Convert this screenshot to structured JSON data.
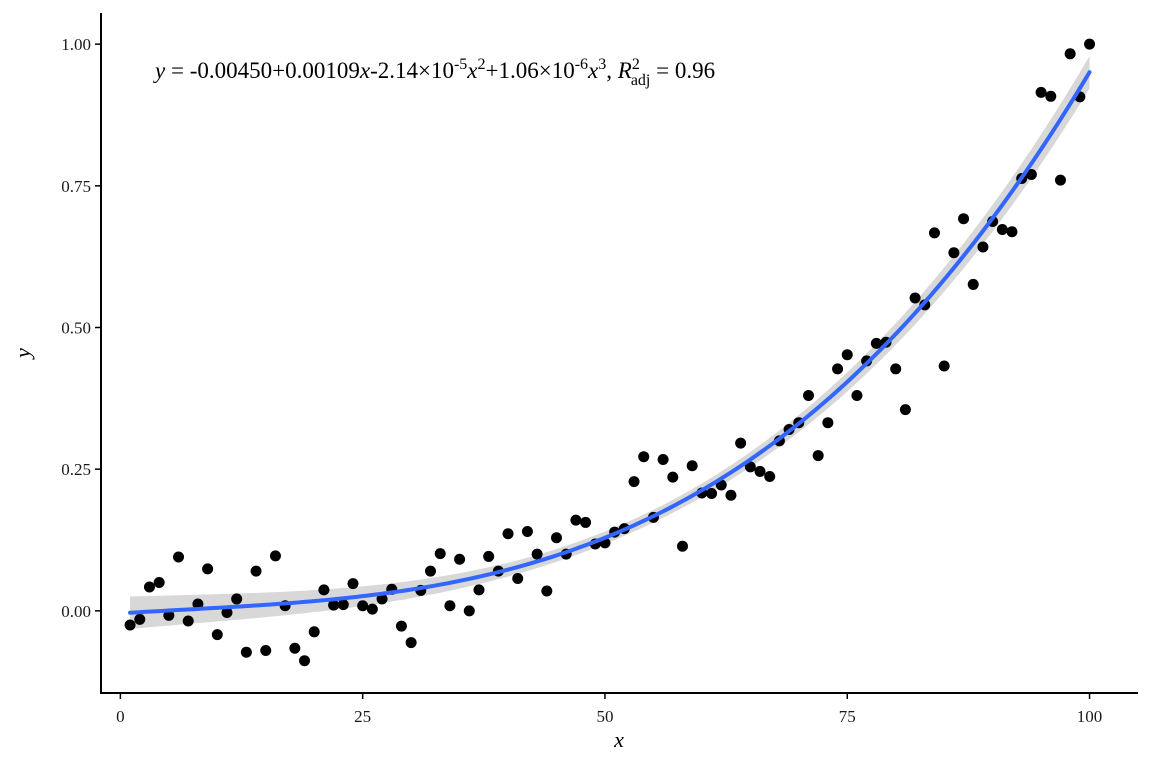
{
  "chart_data": {
    "type": "scatter",
    "xlabel": "x",
    "ylabel": "y",
    "xlim": [
      -2,
      105
    ],
    "ylim": [
      -0.145,
      1.055
    ],
    "x_ticks": [
      0,
      25,
      50,
      75,
      100
    ],
    "x_tick_labels": [
      "0",
      "25",
      "50",
      "75",
      "100"
    ],
    "y_ticks": [
      0,
      0.25,
      0.5,
      0.75,
      1.0
    ],
    "y_tick_labels": [
      "0.00",
      "0.25",
      "0.50",
      "0.75",
      "1.00"
    ],
    "grid": false,
    "equation": {
      "y": "y",
      "eq_sign": " = ",
      "intercept": "-0.00450",
      "term1": "+0.00109",
      "x": "x",
      "term2": "-2.14×10",
      "exp2": "-5",
      "x2": "x",
      "sq": "2",
      "term3": "+1.06×10",
      "exp3": "-6",
      "x3": "x",
      "cube": "3",
      "comma": ", ",
      "R": "R",
      "r_sq": "2",
      "adj": "adj",
      "r2_value": " = 0.96"
    },
    "fit": {
      "model": "cubic",
      "coefficients": [
        -0.0045,
        0.00109,
        -2.14e-05,
        1.06e-06
      ],
      "line_color": "#3366FF",
      "band_color": "#BEBEBE"
    },
    "point_color": "#000000",
    "points": [
      {
        "x": 1,
        "y": -0.025
      },
      {
        "x": 2,
        "y": -0.015
      },
      {
        "x": 3,
        "y": 0.042
      },
      {
        "x": 4,
        "y": 0.05
      },
      {
        "x": 5,
        "y": -0.008
      },
      {
        "x": 6,
        "y": 0.095
      },
      {
        "x": 7,
        "y": -0.018
      },
      {
        "x": 8,
        "y": 0.012
      },
      {
        "x": 9,
        "y": 0.074
      },
      {
        "x": 10,
        "y": -0.042
      },
      {
        "x": 11,
        "y": -0.003
      },
      {
        "x": 12,
        "y": 0.021
      },
      {
        "x": 13,
        "y": -0.073
      },
      {
        "x": 14,
        "y": 0.07
      },
      {
        "x": 15,
        "y": -0.07
      },
      {
        "x": 16,
        "y": 0.097
      },
      {
        "x": 17,
        "y": 0.009
      },
      {
        "x": 18,
        "y": -0.066
      },
      {
        "x": 19,
        "y": -0.088
      },
      {
        "x": 20,
        "y": -0.037
      },
      {
        "x": 21,
        "y": 0.037
      },
      {
        "x": 22,
        "y": 0.01
      },
      {
        "x": 23,
        "y": 0.011
      },
      {
        "x": 24,
        "y": 0.048
      },
      {
        "x": 25,
        "y": 0.009
      },
      {
        "x": 26,
        "y": 0.003
      },
      {
        "x": 27,
        "y": 0.021
      },
      {
        "x": 28,
        "y": 0.038
      },
      {
        "x": 29,
        "y": -0.027
      },
      {
        "x": 30,
        "y": -0.056
      },
      {
        "x": 31,
        "y": 0.036
      },
      {
        "x": 32,
        "y": 0.07
      },
      {
        "x": 33,
        "y": 0.101
      },
      {
        "x": 34,
        "y": 0.009
      },
      {
        "x": 35,
        "y": 0.091
      },
      {
        "x": 36,
        "y": 0.0
      },
      {
        "x": 37,
        "y": 0.037
      },
      {
        "x": 38,
        "y": 0.096
      },
      {
        "x": 39,
        "y": 0.07
      },
      {
        "x": 40,
        "y": 0.136
      },
      {
        "x": 41,
        "y": 0.057
      },
      {
        "x": 42,
        "y": 0.14
      },
      {
        "x": 43,
        "y": 0.1
      },
      {
        "x": 44,
        "y": 0.035
      },
      {
        "x": 45,
        "y": 0.129
      },
      {
        "x": 46,
        "y": 0.1
      },
      {
        "x": 47,
        "y": 0.16
      },
      {
        "x": 48,
        "y": 0.156
      },
      {
        "x": 49,
        "y": 0.118
      },
      {
        "x": 50,
        "y": 0.12
      },
      {
        "x": 51,
        "y": 0.139
      },
      {
        "x": 52,
        "y": 0.145
      },
      {
        "x": 53,
        "y": 0.228
      },
      {
        "x": 54,
        "y": 0.272
      },
      {
        "x": 55,
        "y": 0.165
      },
      {
        "x": 56,
        "y": 0.267
      },
      {
        "x": 57,
        "y": 0.236
      },
      {
        "x": 58,
        "y": 0.114
      },
      {
        "x": 59,
        "y": 0.256
      },
      {
        "x": 60,
        "y": 0.208
      },
      {
        "x": 61,
        "y": 0.207
      },
      {
        "x": 62,
        "y": 0.222
      },
      {
        "x": 63,
        "y": 0.204
      },
      {
        "x": 64,
        "y": 0.296
      },
      {
        "x": 65,
        "y": 0.254
      },
      {
        "x": 66,
        "y": 0.246
      },
      {
        "x": 67,
        "y": 0.237
      },
      {
        "x": 68,
        "y": 0.3
      },
      {
        "x": 69,
        "y": 0.32
      },
      {
        "x": 70,
        "y": 0.332
      },
      {
        "x": 71,
        "y": 0.38
      },
      {
        "x": 72,
        "y": 0.274
      },
      {
        "x": 73,
        "y": 0.332
      },
      {
        "x": 74,
        "y": 0.427
      },
      {
        "x": 75,
        "y": 0.452
      },
      {
        "x": 76,
        "y": 0.38
      },
      {
        "x": 77,
        "y": 0.441
      },
      {
        "x": 78,
        "y": 0.472
      },
      {
        "x": 79,
        "y": 0.474
      },
      {
        "x": 80,
        "y": 0.427
      },
      {
        "x": 81,
        "y": 0.355
      },
      {
        "x": 82,
        "y": 0.552
      },
      {
        "x": 83,
        "y": 0.54
      },
      {
        "x": 84,
        "y": 0.667
      },
      {
        "x": 85,
        "y": 0.432
      },
      {
        "x": 86,
        "y": 0.632
      },
      {
        "x": 87,
        "y": 0.692
      },
      {
        "x": 88,
        "y": 0.576
      },
      {
        "x": 89,
        "y": 0.642
      },
      {
        "x": 90,
        "y": 0.687
      },
      {
        "x": 91,
        "y": 0.673
      },
      {
        "x": 92,
        "y": 0.669
      },
      {
        "x": 93,
        "y": 0.763
      },
      {
        "x": 94,
        "y": 0.77
      },
      {
        "x": 95,
        "y": 0.915
      },
      {
        "x": 96,
        "y": 0.908
      },
      {
        "x": 97,
        "y": 0.76
      },
      {
        "x": 98,
        "y": 0.983
      },
      {
        "x": 99,
        "y": 0.907
      },
      {
        "x": 100,
        "y": 1.0
      }
    ]
  }
}
